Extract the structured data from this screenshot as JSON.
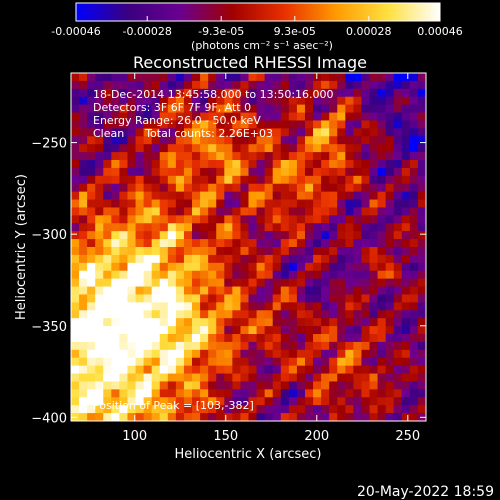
{
  "chart_data": {
    "type": "heatmap",
    "title": "Reconstructed RHESSI Image",
    "xlabel": "Heliocentric X (arcsec)",
    "ylabel": "Heliocentric Y (arcsec)",
    "xlim": [
      65,
      260
    ],
    "ylim": [
      -402,
      -212
    ],
    "x_ticks": [
      100,
      150,
      200,
      250
    ],
    "y_ticks": [
      -250,
      -300,
      -350,
      -400
    ],
    "colorbar": {
      "colormap": "hot",
      "range": [
        -0.00046,
        0.00046
      ],
      "tick_values": [
        -0.00046,
        -0.00028,
        -9.3e-05,
        9.3e-05,
        0.00028,
        0.00046
      ],
      "tick_labels": [
        "-0.00046",
        "-0.00028",
        "-9.3e-05",
        "9.3e-05",
        "0.00028",
        "0.00046"
      ],
      "units_line": "(photons cm⁻² s⁻¹ asec⁻²)",
      "stops": [
        "#0000ff",
        "#3b0080",
        "#6a0090",
        "#a00000",
        "#e83000",
        "#ff9a00",
        "#ffe040",
        "#ffffff"
      ]
    },
    "annotations": [
      "18-Dec-2014 13:45:58.000 to 13:50:16.000",
      "Detectors: 3F 6F 7F 9F, Att 0",
      "Energy Range: 26.0 - 50.0 keV",
      "Clean      Total counts: 2.26E+03"
    ],
    "peak_label": "Position of Peak = [103,-382]",
    "peak": [
      103,
      -382
    ],
    "grid": false
  },
  "footer": {
    "timestamp": "20-May-2022 18:59"
  }
}
